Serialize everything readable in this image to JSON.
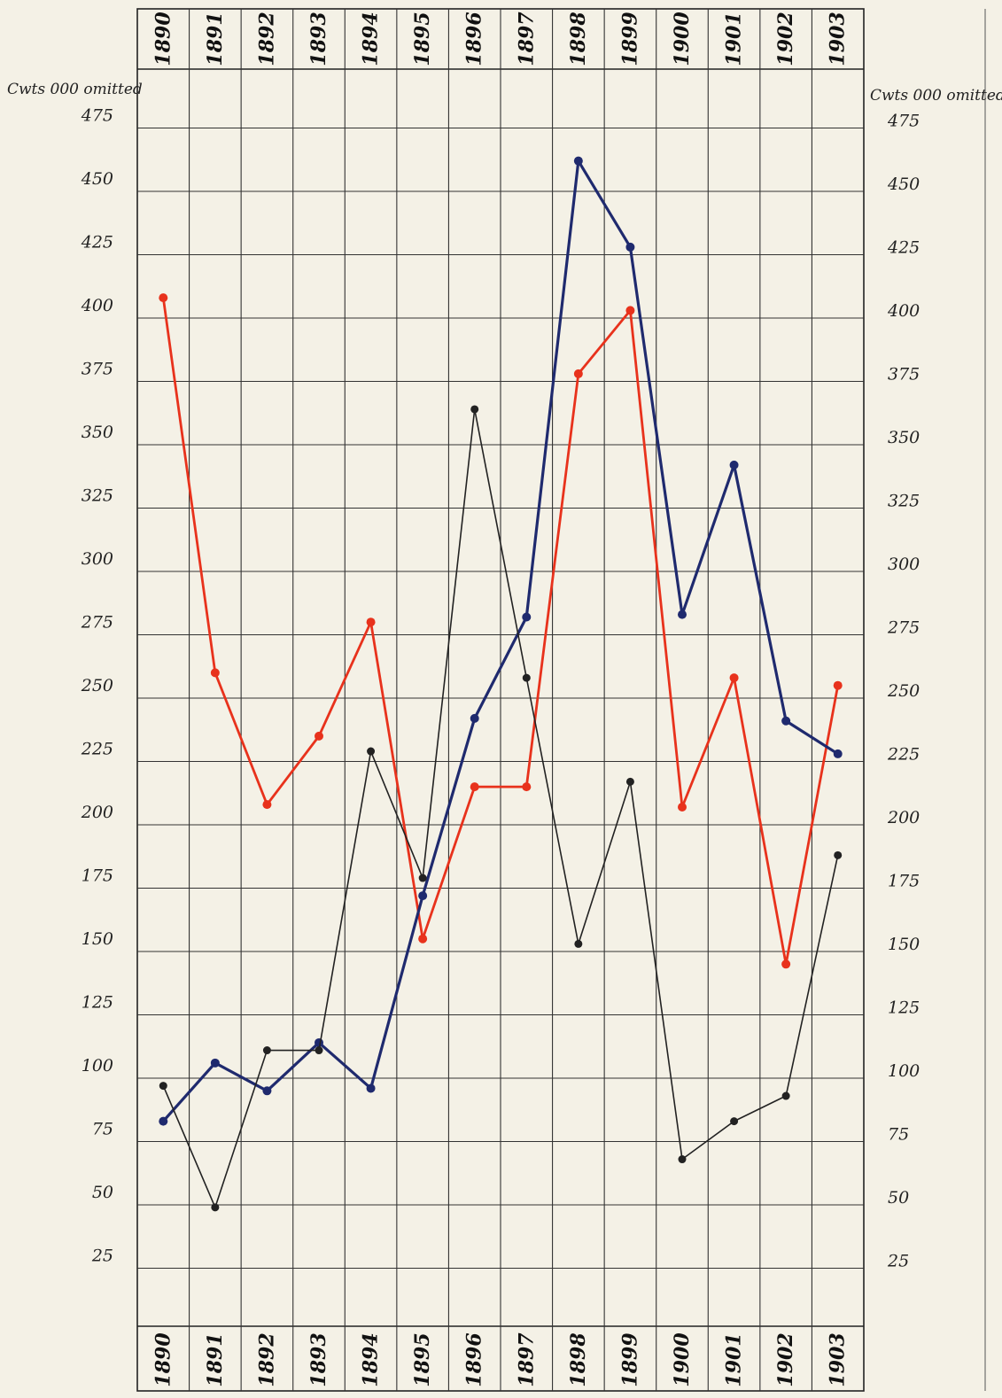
{
  "chart_data": {
    "type": "line",
    "title": "",
    "ylabel_left": "Cwts 000 omitted",
    "ylabel_right": "Cwts 000 omitted",
    "categories": [
      "1890",
      "1891",
      "1892",
      "1893",
      "1894",
      "1895",
      "1896",
      "1897",
      "1898",
      "1899",
      "1900",
      "1901",
      "1902",
      "1903"
    ],
    "yticks": [
      "25",
      "50",
      "75",
      "100",
      "125",
      "150",
      "175",
      "200",
      "225",
      "250",
      "275",
      "300",
      "325",
      "350",
      "375",
      "400",
      "425",
      "450",
      "475"
    ],
    "ylim": [
      0,
      500
    ],
    "grid": true,
    "legend": "none",
    "series": [
      {
        "color": "#e8321c",
        "values": [
          408,
          260,
          208,
          235,
          280,
          155,
          215,
          215,
          378,
          403,
          207,
          258,
          145,
          255
        ]
      },
      {
        "color": "#1f2a6e",
        "values": [
          83,
          106,
          95,
          114,
          96,
          172,
          242,
          282,
          462,
          428,
          283,
          342,
          241,
          228
        ]
      },
      {
        "color": "#222222",
        "values": [
          97,
          49,
          111,
          111,
          229,
          179,
          364,
          258,
          153,
          217,
          68,
          83,
          93,
          188
        ]
      }
    ]
  }
}
